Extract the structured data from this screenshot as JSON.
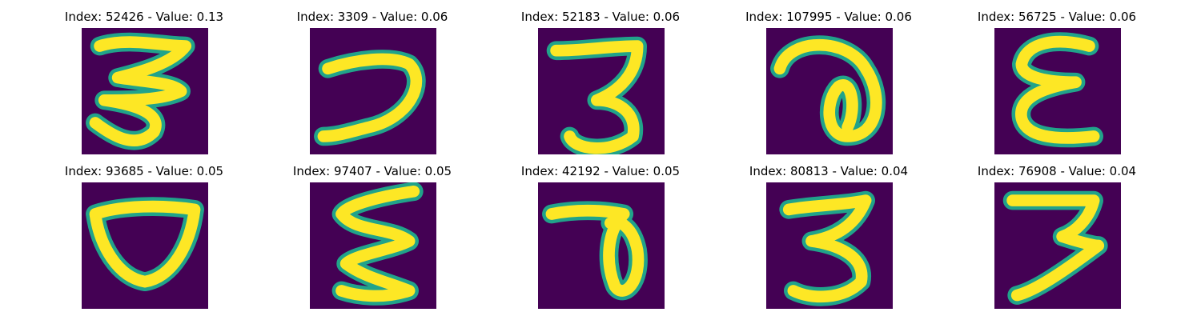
{
  "figure": {
    "panels": [
      {
        "title": "Index: 52426 - Value: 0.13",
        "glyph": "three-wide"
      },
      {
        "title": "Index: 3309 - Value: 0.06",
        "glyph": "hook"
      },
      {
        "title": "Index: 52183 - Value: 0.06",
        "glyph": "three-small"
      },
      {
        "title": "Index: 107995 - Value: 0.06",
        "glyph": "loop"
      },
      {
        "title": "Index: 56725 - Value: 0.06",
        "glyph": "epsilon"
      },
      {
        "title": "Index: 93685 - Value: 0.05",
        "glyph": "bowl"
      },
      {
        "title": "Index: 97407 - Value: 0.05",
        "glyph": "zigzag"
      },
      {
        "title": "Index: 42192 - Value: 0.05",
        "glyph": "seven-loop"
      },
      {
        "title": "Index: 80813 - Value: 0.04",
        "glyph": "three-bold"
      },
      {
        "title": "Index: 76908 - Value: 0.04",
        "glyph": "seven-stroke"
      }
    ],
    "colors": {
      "background": "#440154",
      "stroke": "#fde725",
      "edge": "#21a38a"
    }
  }
}
